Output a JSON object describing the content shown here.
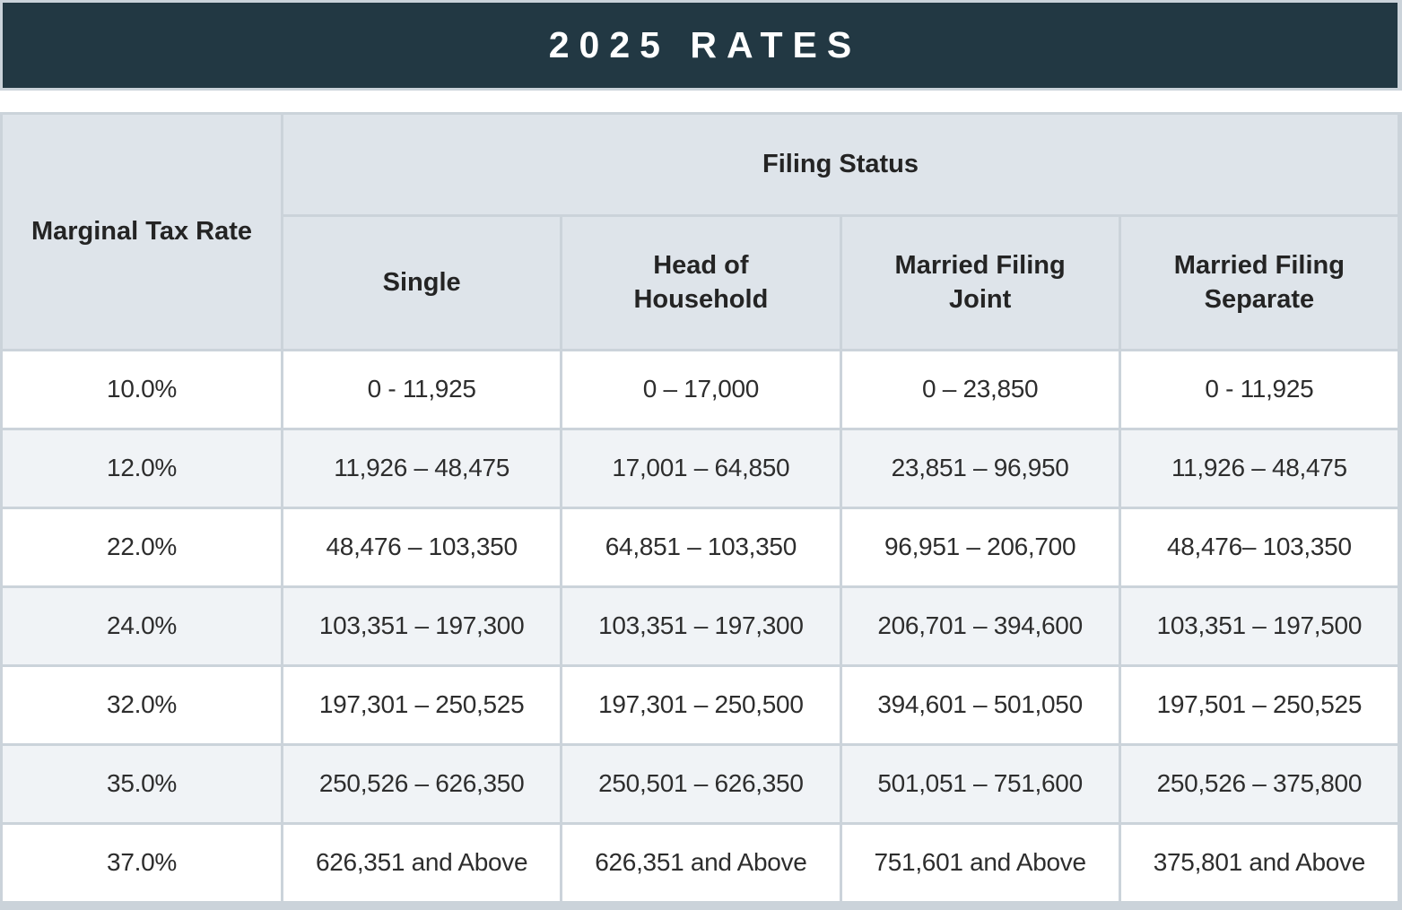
{
  "title": "2025 RATES",
  "table": {
    "corner_header": "Marginal Tax Rate",
    "group_header": "Filing Status",
    "columns": [
      "Single",
      "Head of Household",
      "Married Filing Joint",
      "Married Filing Separate"
    ],
    "rows": [
      {
        "rate": "10.0%",
        "values": [
          "0 - 11,925",
          "0 – 17,000",
          "0 – 23,850",
          "0 - 11,925"
        ]
      },
      {
        "rate": "12.0%",
        "values": [
          "11,926 – 48,475",
          "17,001 – 64,850",
          "23,851 – 96,950",
          "11,926 – 48,475"
        ]
      },
      {
        "rate": "22.0%",
        "values": [
          "48,476 – 103,350",
          "64,851 – 103,350",
          "96,951 – 206,700",
          "48,476– 103,350"
        ]
      },
      {
        "rate": "24.0%",
        "values": [
          "103,351 – 197,300",
          "103,351 – 197,300",
          "206,701 – 394,600",
          "103,351 – 197,500"
        ]
      },
      {
        "rate": "32.0%",
        "values": [
          "197,301 – 250,525",
          "197,301 – 250,500",
          "394,601 – 501,050",
          "197,501 – 250,525"
        ]
      },
      {
        "rate": "35.0%",
        "values": [
          "250,526 – 626,350",
          "250,501 – 626,350",
          "501,051 – 751,600",
          "250,526 – 375,800"
        ]
      },
      {
        "rate": "37.0%",
        "values": [
          "626,351 and Above",
          "626,351 and Above",
          "751,601 and Above",
          "375,801 and Above"
        ]
      }
    ]
  },
  "colors": {
    "title_band": "#223843",
    "border": "#cbd3da",
    "header_bg": "#dee4ea",
    "row_alt": "#f0f3f6",
    "row": "#ffffff",
    "text": "#2d2d2d"
  }
}
